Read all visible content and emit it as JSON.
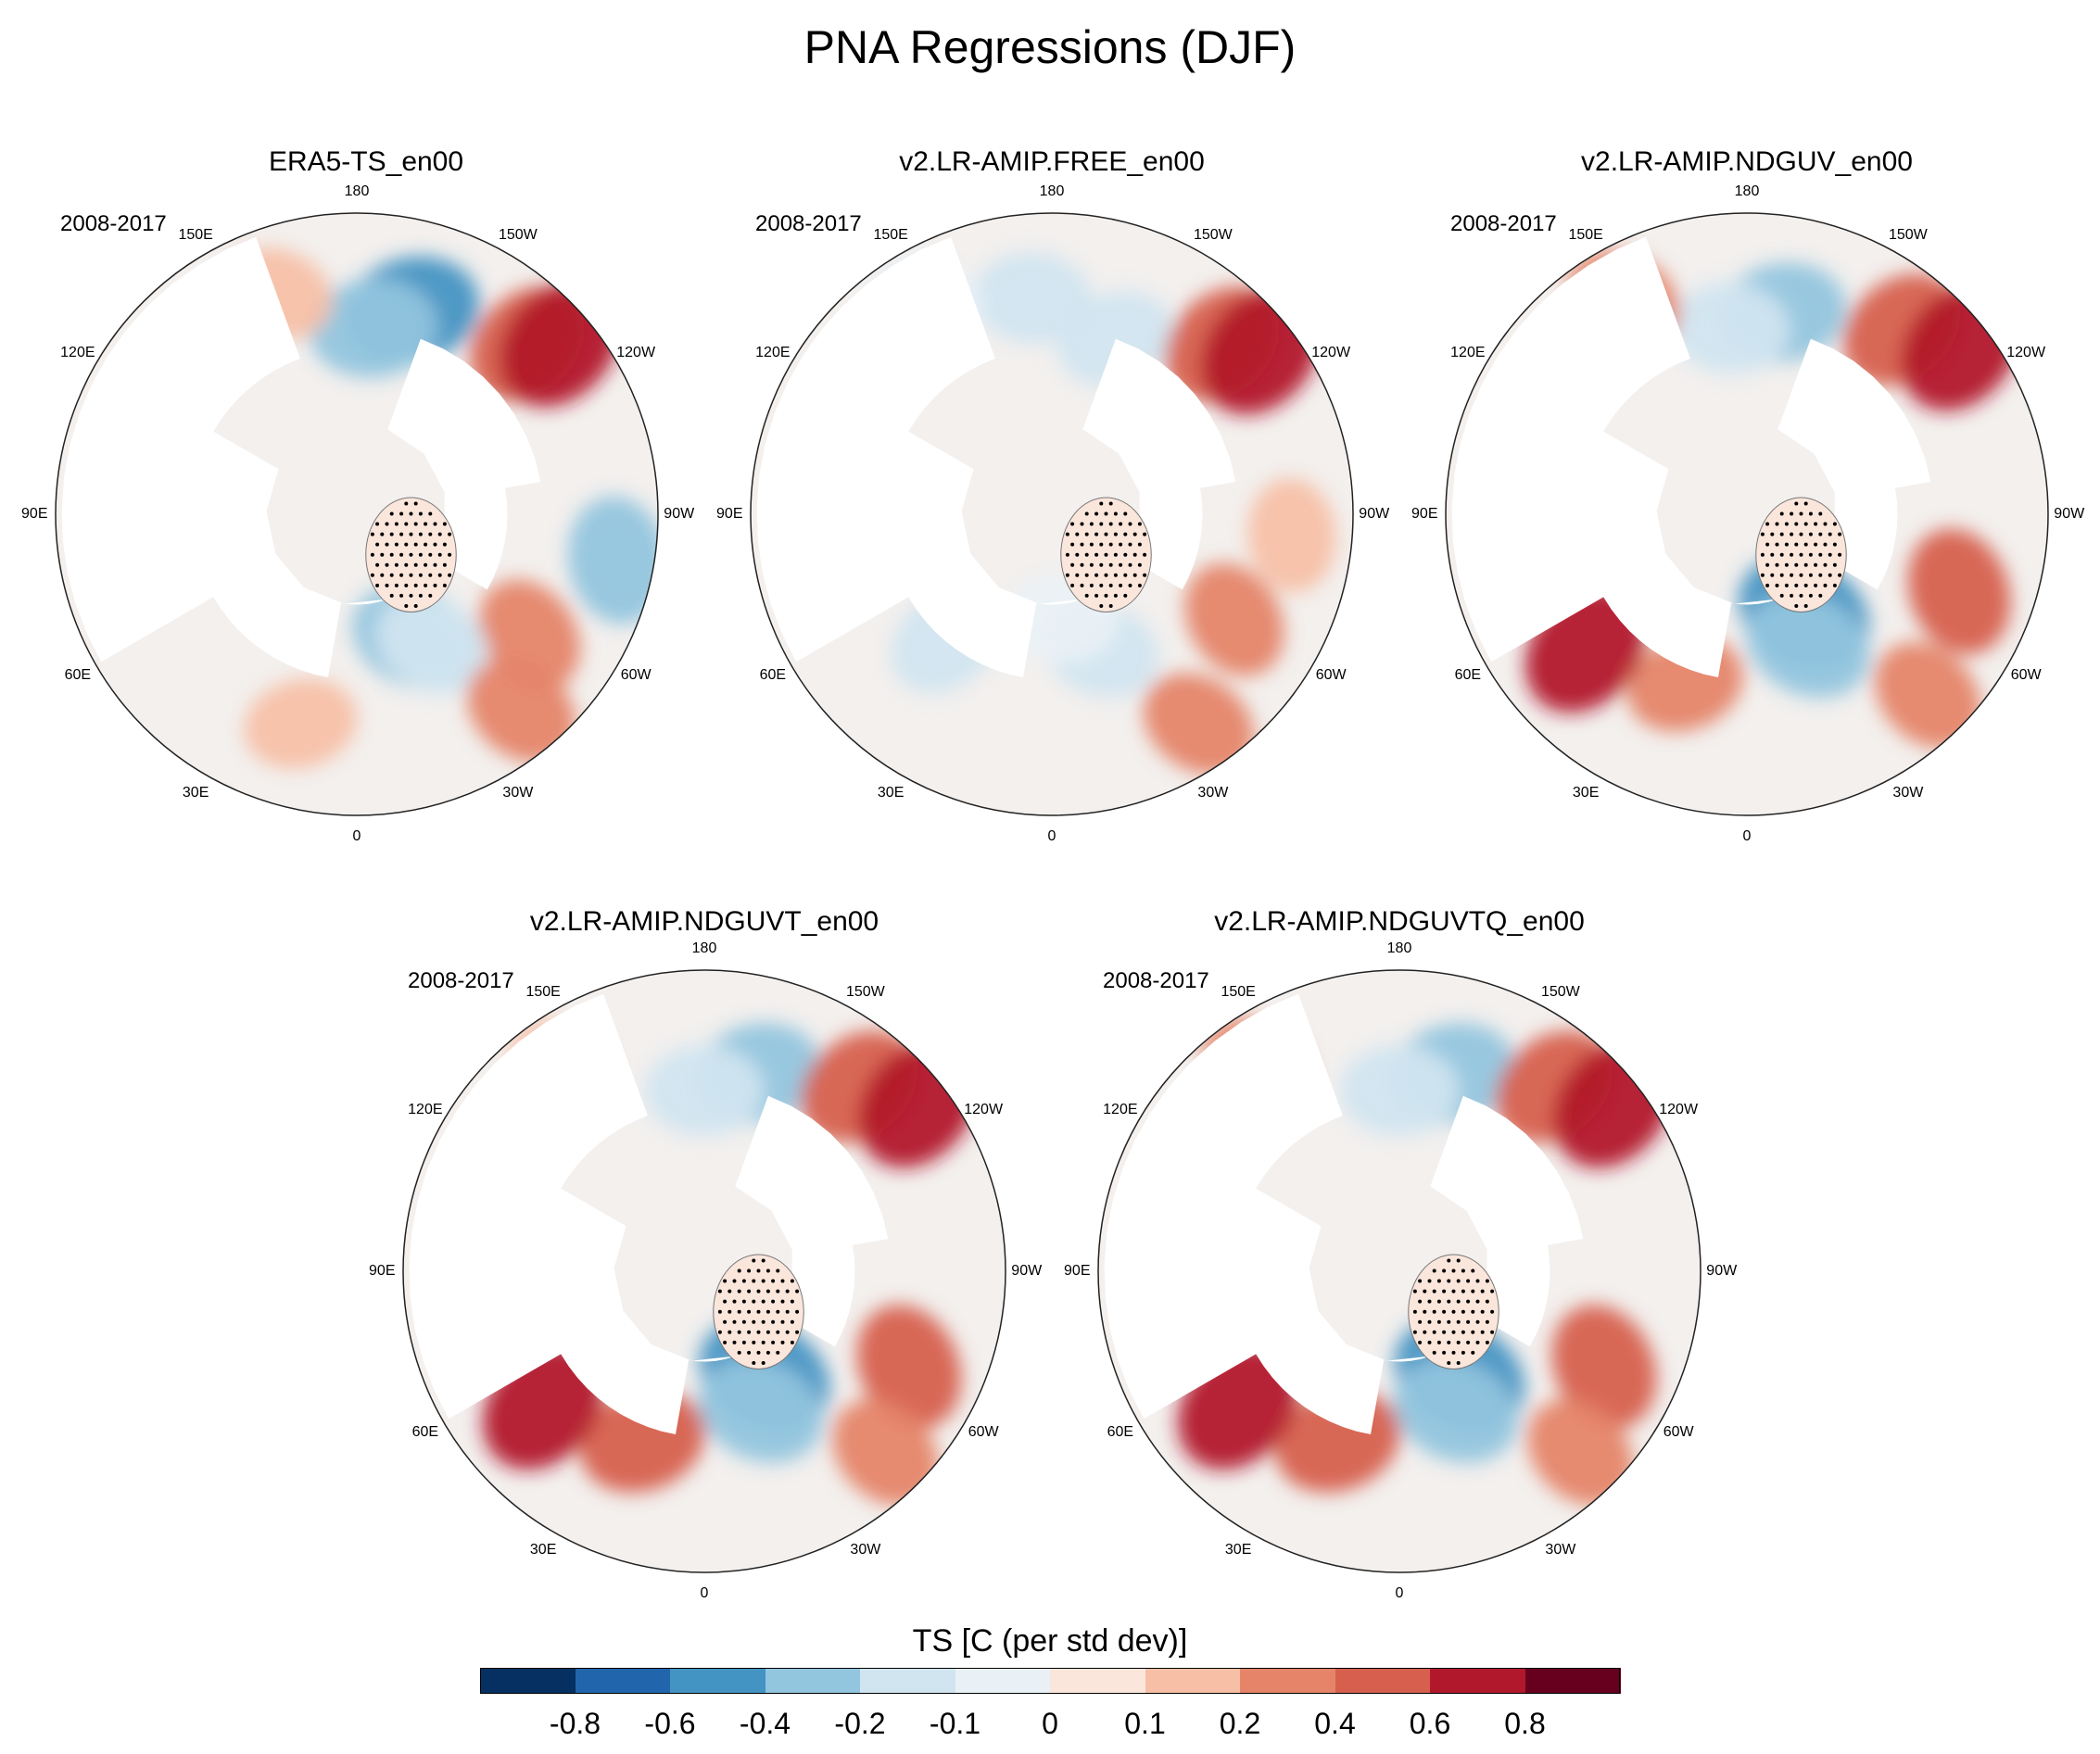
{
  "title": "PNA Regressions (DJF)",
  "chart_data": {
    "type": "heatmap",
    "projection": "north polar stereographic",
    "variable": "TS",
    "season": "DJF",
    "period_label": "2008-2017",
    "lon_labels": [
      "180",
      "150E",
      "120E",
      "90E",
      "60E",
      "30E",
      "0",
      "30W",
      "60W",
      "90W",
      "120W",
      "150W"
    ],
    "panels": [
      {
        "title": "ERA5-TS_en00",
        "blobs": [
          {
            "lon": -165,
            "r": 0.7,
            "value": -0.6
          },
          {
            "lon": -175,
            "r": 0.62,
            "value": -0.4
          },
          {
            "lon": 160,
            "r": 0.78,
            "value": 0.1
          },
          {
            "lon": -135,
            "r": 0.8,
            "value": 0.4
          },
          {
            "lon": -130,
            "r": 0.88,
            "value": 0.6
          },
          {
            "lon": -80,
            "r": 0.88,
            "value": -0.4
          },
          {
            "lon": -55,
            "r": 0.7,
            "value": 0.2
          },
          {
            "lon": -25,
            "r": 0.45,
            "value": -0.4
          },
          {
            "lon": -30,
            "r": 0.5,
            "value": -0.2
          },
          {
            "lon": -40,
            "r": 0.85,
            "value": 0.2
          },
          {
            "lon": 15,
            "r": 0.72,
            "value": 0.1
          }
        ]
      },
      {
        "title": "v2.LR-AMIP.FREE_en00",
        "blobs": [
          {
            "lon": 175,
            "r": 0.72,
            "value": -0.2
          },
          {
            "lon": -160,
            "r": 0.62,
            "value": -0.2
          },
          {
            "lon": 150,
            "r": 0.82,
            "value": -0.1
          },
          {
            "lon": -135,
            "r": 0.8,
            "value": 0.4
          },
          {
            "lon": -128,
            "r": 0.88,
            "value": 0.6
          },
          {
            "lon": -85,
            "r": 0.8,
            "value": 0.1
          },
          {
            "lon": -60,
            "r": 0.7,
            "value": 0.2
          },
          {
            "lon": -20,
            "r": 0.48,
            "value": -0.2
          },
          {
            "lon": -5,
            "r": 0.35,
            "value": -0.1
          },
          {
            "lon": -35,
            "r": 0.85,
            "value": 0.2
          },
          {
            "lon": 40,
            "r": 0.55,
            "value": -0.2
          }
        ]
      },
      {
        "title": "v2.LR-AMIP.NDGUV_en00",
        "blobs": [
          {
            "lon": -170,
            "r": 0.68,
            "value": -0.4
          },
          {
            "lon": 175,
            "r": 0.62,
            "value": -0.2
          },
          {
            "lon": 150,
            "r": 0.82,
            "value": 0.2
          },
          {
            "lon": -140,
            "r": 0.8,
            "value": 0.4
          },
          {
            "lon": -128,
            "r": 0.9,
            "value": 0.6
          },
          {
            "lon": -70,
            "r": 0.75,
            "value": 0.4
          },
          {
            "lon": -30,
            "r": 0.38,
            "value": -0.6
          },
          {
            "lon": -25,
            "r": 0.48,
            "value": -0.4
          },
          {
            "lon": -45,
            "r": 0.85,
            "value": 0.2
          },
          {
            "lon": 20,
            "r": 0.6,
            "value": 0.2
          },
          {
            "lon": 50,
            "r": 0.7,
            "value": 0.6
          }
        ]
      },
      {
        "title": "v2.LR-AMIP.NDGUVT_en00",
        "blobs": [
          {
            "lon": -165,
            "r": 0.68,
            "value": -0.4
          },
          {
            "lon": 180,
            "r": 0.6,
            "value": -0.2
          },
          {
            "lon": 145,
            "r": 0.82,
            "value": 0.1
          },
          {
            "lon": -140,
            "r": 0.8,
            "value": 0.4
          },
          {
            "lon": -128,
            "r": 0.9,
            "value": 0.6
          },
          {
            "lon": -65,
            "r": 0.75,
            "value": 0.4
          },
          {
            "lon": -30,
            "r": 0.4,
            "value": -0.6
          },
          {
            "lon": -22,
            "r": 0.5,
            "value": -0.4
          },
          {
            "lon": -45,
            "r": 0.85,
            "value": 0.2
          },
          {
            "lon": 20,
            "r": 0.6,
            "value": 0.4
          },
          {
            "lon": 50,
            "r": 0.7,
            "value": 0.6
          }
        ]
      },
      {
        "title": "v2.LR-AMIP.NDGUVTQ_en00",
        "blobs": [
          {
            "lon": -165,
            "r": 0.68,
            "value": -0.4
          },
          {
            "lon": 180,
            "r": 0.6,
            "value": -0.2
          },
          {
            "lon": 145,
            "r": 0.82,
            "value": 0.2
          },
          {
            "lon": -140,
            "r": 0.8,
            "value": 0.4
          },
          {
            "lon": -128,
            "r": 0.9,
            "value": 0.6
          },
          {
            "lon": -65,
            "r": 0.75,
            "value": 0.4
          },
          {
            "lon": -30,
            "r": 0.4,
            "value": -0.6
          },
          {
            "lon": -22,
            "r": 0.5,
            "value": -0.4
          },
          {
            "lon": -45,
            "r": 0.85,
            "value": 0.2
          },
          {
            "lon": 20,
            "r": 0.6,
            "value": 0.4
          },
          {
            "lon": 50,
            "r": 0.7,
            "value": 0.6
          }
        ]
      }
    ],
    "colorbar": {
      "title": "TS [C (per std dev)]",
      "levels": [
        -0.8,
        -0.6,
        -0.4,
        -0.2,
        -0.1,
        0,
        0.1,
        0.2,
        0.4,
        0.6,
        0.8
      ],
      "tick_labels": [
        "-0.8",
        "-0.6",
        "-0.4",
        "-0.2",
        "-0.1",
        "0",
        "0.1",
        "0.2",
        "0.4",
        "0.6",
        "0.8"
      ],
      "colors": [
        "#053061",
        "#2166ac",
        "#4393c3",
        "#92c5de",
        "#d1e5f0",
        "#eaf1f6",
        "#fbe6dc",
        "#f7c0a6",
        "#e58469",
        "#d6604d",
        "#b2182b",
        "#67001f"
      ]
    }
  }
}
